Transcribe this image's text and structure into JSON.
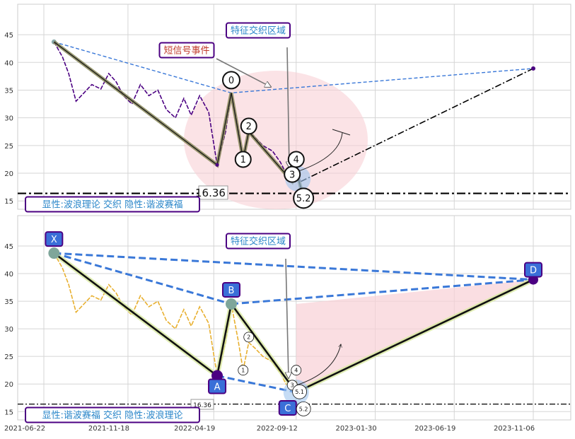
{
  "chart_data": [
    {
      "type": "line",
      "panel": "top",
      "x_ticks": [
        "2021-06-22",
        "2021-11-18",
        "2022-04-19",
        "2022-09-12",
        "2023-01-30",
        "2023-06-19",
        "2023-11-06"
      ],
      "y_ticks": [
        15,
        20,
        25,
        30,
        35,
        40,
        45
      ],
      "ylim": [
        13.5,
        50.5
      ],
      "grid": true,
      "threshold": {
        "value": 16.36,
        "label": "16.36"
      },
      "series": [
        {
          "values": [
            [
              "2021-07-10",
              43.7
            ],
            [
              "2021-07-25",
              41.0
            ],
            [
              "2021-08-05",
              38.0
            ],
            [
              "2021-08-18",
              33.0
            ],
            [
              "2021-09-01",
              34.5
            ],
            [
              "2021-09-15",
              36.0
            ],
            [
              "2021-10-01",
              35.2
            ],
            [
              "2021-10-15",
              38.0
            ],
            [
              "2021-10-28",
              36.5
            ],
            [
              "2021-11-10",
              34.0
            ],
            [
              "2021-11-25",
              32.5
            ],
            [
              "2021-12-10",
              36.0
            ],
            [
              "2021-12-25",
              34.0
            ],
            [
              "2022-01-10",
              35.0
            ],
            [
              "2022-01-25",
              31.5
            ],
            [
              "2022-02-10",
              30.0
            ],
            [
              "2022-02-25",
              33.5
            ],
            [
              "2022-03-10",
              30.5
            ],
            [
              "2022-03-25",
              34.0
            ],
            [
              "2022-04-10",
              31.0
            ],
            [
              "2022-04-25",
              21.5
            ],
            [
              "2022-05-10",
              27.5
            ],
            [
              "2022-05-20",
              34.5
            ],
            [
              "2022-06-01",
              28.0
            ],
            [
              "2022-06-10",
              22.5
            ],
            [
              "2022-06-20",
              27.5
            ],
            [
              "2022-07-01",
              26.5
            ],
            [
              "2022-07-15",
              25.0
            ],
            [
              "2022-08-01",
              24.0
            ],
            [
              "2022-08-15",
              22.0
            ],
            [
              "2022-08-25",
              20.0
            ],
            [
              "2022-09-05",
              19.0
            ],
            [
              "2022-09-12",
              20.5
            ],
            [
              "2022-09-20",
              18.5
            ]
          ]
        },
        {
          "values": [
            [
              "2021-07-10",
              43.7
            ],
            [
              "2022-04-25",
              21.5
            ],
            [
              "2022-05-20",
              34.5
            ],
            [
              "2022-06-10",
              22.5
            ],
            [
              "2022-06-20",
              27.5
            ],
            [
              "2022-09-05",
              18.5
            ],
            [
              "2022-09-12",
              20.5
            ],
            [
              "2022-09-25",
              15.5
            ]
          ]
        },
        {
          "values": [
            [
              "2021-07-10",
              43.7
            ],
            [
              "2022-05-20",
              34.5
            ],
            [
              "2023-11-06",
              38.9
            ]
          ]
        },
        {
          "values": [
            [
              "2022-09-20",
              18.5
            ],
            [
              "2023-11-06",
              38.9
            ]
          ]
        }
      ],
      "wave_labels": [
        {
          "text": "0",
          "x": "2022-05-20",
          "y": 36.8
        },
        {
          "text": "1",
          "x": "2022-06-10",
          "y": 22.5
        },
        {
          "text": "2",
          "x": "2022-06-20",
          "y": 28.5
        },
        {
          "text": "3",
          "x": "2022-09-05",
          "y": 19.8
        },
        {
          "text": "4",
          "x": "2022-09-12",
          "y": 22.5
        },
        {
          "text": "5.2",
          "x": "2022-09-25",
          "y": 15.5
        }
      ],
      "annotations": [
        {
          "text": "特征交织区域",
          "color": "#2a86c9"
        },
        {
          "text": "短信号事件",
          "color": "#c0392b"
        },
        {
          "text": "显性:波浪理论 交织 隐性:谐波赛福",
          "color": "#2a86c9"
        }
      ]
    },
    {
      "type": "line",
      "panel": "bottom",
      "x_ticks": [
        "2021-06-22",
        "2021-11-18",
        "2022-04-19",
        "2022-09-12",
        "2023-01-30",
        "2023-06-19",
        "2023-11-06"
      ],
      "y_ticks": [
        15,
        20,
        25,
        30,
        35,
        40,
        45
      ],
      "ylim": [
        13.5,
        50.5
      ],
      "grid": true,
      "threshold": {
        "value": 16.36,
        "label": "16.36"
      },
      "series": [
        {
          "values": [
            [
              "2021-07-10",
              43.7
            ],
            [
              "2021-07-25",
              41.0
            ],
            [
              "2021-08-05",
              38.0
            ],
            [
              "2021-08-18",
              33.0
            ],
            [
              "2021-09-01",
              34.5
            ],
            [
              "2021-09-15",
              36.0
            ],
            [
              "2021-10-01",
              35.2
            ],
            [
              "2021-10-15",
              38.0
            ],
            [
              "2021-10-28",
              36.5
            ],
            [
              "2021-11-10",
              34.0
            ],
            [
              "2021-11-25",
              32.5
            ],
            [
              "2021-12-10",
              36.0
            ],
            [
              "2021-12-25",
              34.0
            ],
            [
              "2022-01-10",
              35.0
            ],
            [
              "2022-01-25",
              31.5
            ],
            [
              "2022-02-10",
              30.0
            ],
            [
              "2022-02-25",
              33.5
            ],
            [
              "2022-03-10",
              30.5
            ],
            [
              "2022-03-25",
              34.0
            ],
            [
              "2022-04-10",
              31.0
            ],
            [
              "2022-04-25",
              21.5
            ],
            [
              "2022-05-10",
              27.5
            ],
            [
              "2022-05-20",
              34.5
            ],
            [
              "2022-06-01",
              28.0
            ],
            [
              "2022-06-10",
              22.5
            ],
            [
              "2022-06-20",
              27.5
            ],
            [
              "2022-07-01",
              26.5
            ],
            [
              "2022-07-15",
              25.0
            ],
            [
              "2022-08-01",
              24.0
            ],
            [
              "2022-08-15",
              22.0
            ],
            [
              "2022-08-25",
              20.0
            ],
            [
              "2022-09-05",
              19.0
            ],
            [
              "2022-09-12",
              20.5
            ],
            [
              "2022-09-20",
              18.5
            ]
          ]
        },
        {
          "values": [
            [
              "2021-07-10",
              43.7
            ],
            [
              "2022-04-25",
              21.5
            ],
            [
              "2022-05-20",
              34.5
            ],
            [
              "2022-09-12",
              18.5
            ],
            [
              "2023-11-06",
              38.9
            ]
          ]
        }
      ],
      "harmonic_points": [
        {
          "text": "X",
          "x": "2021-07-10",
          "y": 43.7
        },
        {
          "text": "A",
          "x": "2022-04-25",
          "y": 21.5
        },
        {
          "text": "B",
          "x": "2022-05-20",
          "y": 34.5
        },
        {
          "text": "C",
          "x": "2022-09-12",
          "y": 18.5
        },
        {
          "text": "D",
          "x": "2023-11-06",
          "y": 38.9
        }
      ],
      "wave_labels": [
        {
          "text": "1",
          "x": "2022-06-10",
          "y": 22.5
        },
        {
          "text": "2",
          "x": "2022-06-20",
          "y": 28.5
        },
        {
          "text": "3",
          "x": "2022-09-05",
          "y": 19.8
        },
        {
          "text": "4",
          "x": "2022-09-12",
          "y": 22.5
        },
        {
          "text": "5.1",
          "x": "2022-09-18",
          "y": 18.6
        },
        {
          "text": "5.2",
          "x": "2022-09-25",
          "y": 15.5
        }
      ],
      "annotations": [
        {
          "text": "特征交织区域",
          "color": "#2a86c9"
        },
        {
          "text": "显性:谐波赛福 交织 隐性:波浪理论",
          "color": "#2a86c9"
        }
      ]
    }
  ],
  "colors": {
    "price_top": "#4b0082",
    "price_bottom": "#e8b030",
    "dashed_blue": "#3a78d8",
    "shade_pink": "#f8d0d5",
    "label_border": "#4b0082",
    "badge_blue": "#3a6fd8"
  }
}
